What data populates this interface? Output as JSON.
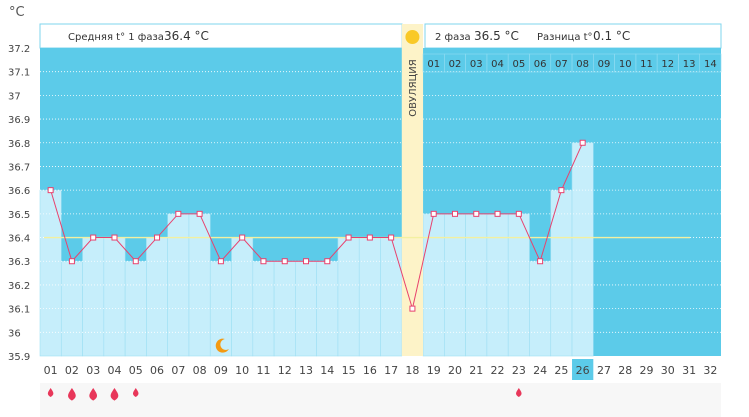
{
  "chart_data": {
    "type": "line",
    "unit_label": "°C",
    "y_ticks": [
      "37.2",
      "37.1",
      "37",
      "36.9",
      "36.8",
      "36.7",
      "36.6",
      "36.5",
      "36.4",
      "36.3",
      "36.2",
      "36.1",
      "36",
      "35.9"
    ],
    "ylim": [
      35.9,
      37.2
    ],
    "x_labels": [
      "01",
      "02",
      "03",
      "04",
      "05",
      "06",
      "07",
      "08",
      "09",
      "10",
      "11",
      "12",
      "13",
      "14",
      "15",
      "16",
      "17",
      "18",
      "19",
      "20",
      "21",
      "22",
      "23",
      "24",
      "25",
      "26",
      "27",
      "28",
      "29",
      "30",
      "31",
      "32"
    ],
    "phase2_labels": [
      "01",
      "02",
      "03",
      "04",
      "05",
      "06",
      "07",
      "08",
      "09",
      "10",
      "11",
      "12",
      "13",
      "14"
    ],
    "values": [
      36.6,
      36.3,
      36.4,
      36.4,
      36.3,
      36.4,
      36.5,
      36.5,
      36.3,
      36.4,
      36.3,
      36.3,
      36.3,
      36.3,
      36.4,
      36.4,
      36.4,
      36.1,
      36.5,
      36.5,
      36.5,
      36.5,
      36.5,
      36.3,
      36.6,
      36.8
    ],
    "coverline": 36.4,
    "ovulation_day": 18,
    "ovulation_label": "ОВУЛЯЦИЯ",
    "current_day": "26",
    "phase1": {
      "label": "Средняя t° 1 фаза",
      "value": "36.4 °C"
    },
    "phase2": {
      "label": "2 фаза",
      "value": "36.5 °C"
    },
    "difference": {
      "label": "Разница t°",
      "value": "0.1 °C"
    },
    "moon_day": 9,
    "drops": [
      {
        "day": 1,
        "size": "small"
      },
      {
        "day": 2,
        "size": "large"
      },
      {
        "day": 3,
        "size": "large"
      },
      {
        "day": 4,
        "size": "large"
      },
      {
        "day": 5,
        "size": "small"
      },
      {
        "day": 23,
        "size": "small"
      }
    ],
    "colors": {
      "background": "#5ccbe9",
      "bar": "#c6eefb",
      "line": "#e8426e",
      "marker_fill": "#ffffff",
      "coverline": "#f3f0a0",
      "ovulation": "#fdf3c8",
      "sun": "#f9c927",
      "moon": "#f39a12",
      "drop": "#e8375a",
      "current_day_bg": "#5ccbe9"
    }
  }
}
